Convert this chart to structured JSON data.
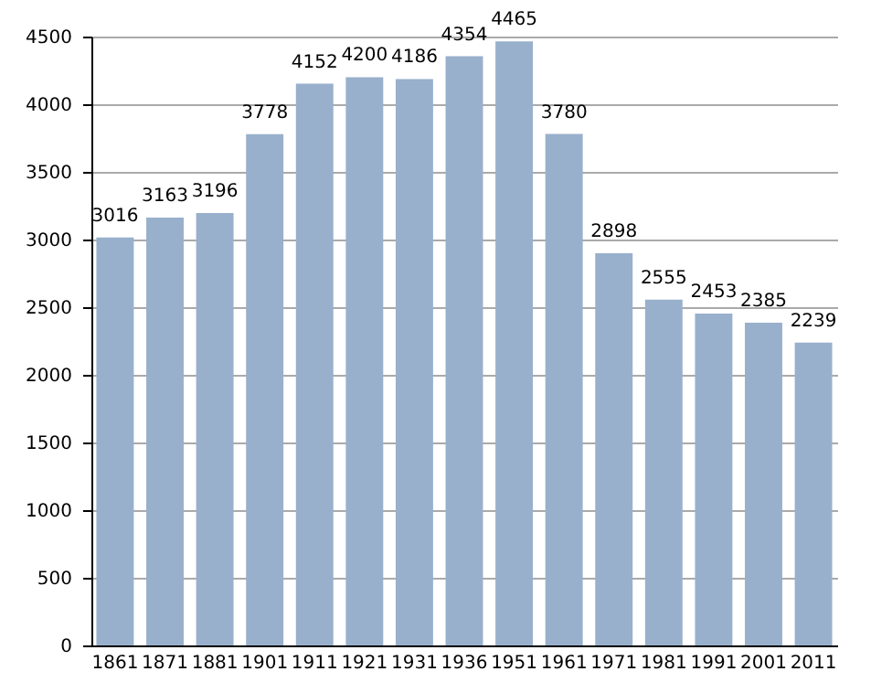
{
  "chart_data": {
    "type": "bar",
    "categories": [
      "1861",
      "1871",
      "1881",
      "1901",
      "1911",
      "1921",
      "1931",
      "1936",
      "1951",
      "1961",
      "1971",
      "1981",
      "1991",
      "2001",
      "2011"
    ],
    "values": [
      3016,
      3163,
      3196,
      3778,
      4152,
      4200,
      4186,
      4354,
      4465,
      3780,
      2898,
      2555,
      2453,
      2385,
      2239
    ],
    "color": "#98b0cc",
    "ylim": [
      0,
      4500
    ],
    "yticks": [
      0,
      500,
      1000,
      1500,
      2000,
      2500,
      3000,
      3500,
      4000,
      4500
    ],
    "grid": "y",
    "data_labels": true
  }
}
